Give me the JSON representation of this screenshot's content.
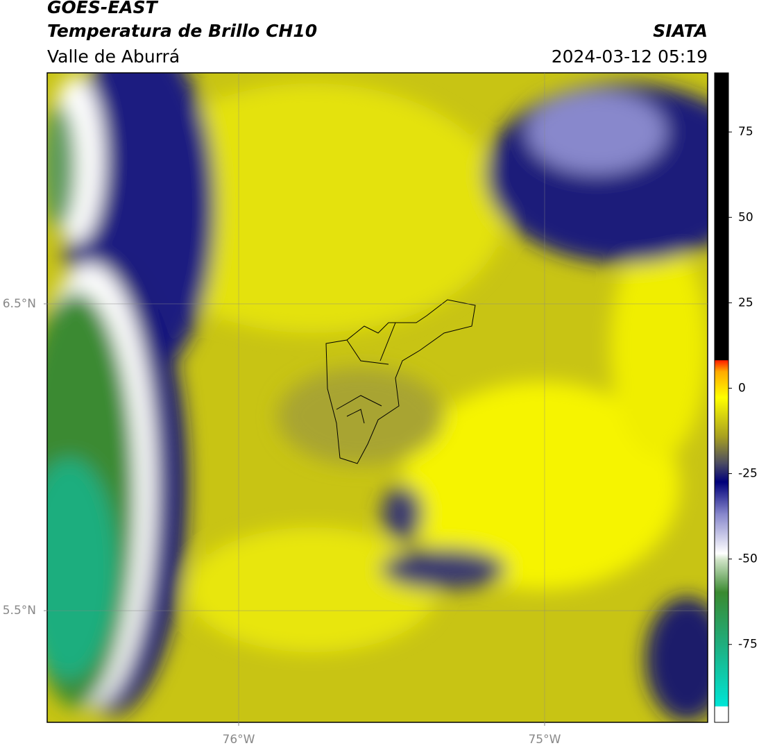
{
  "header": {
    "title": "GOES-EAST",
    "subtitle": "Temperatura de Brillo CH10",
    "region": "Valle de Aburrá",
    "source": "SIATA",
    "datetime": "2024-03-12 05:19"
  },
  "map": {
    "xlim": [
      -76.626,
      -74.467
    ],
    "ylim": [
      5.136,
      7.253
    ],
    "xticks": [
      {
        "value": -76,
        "label": "76°W"
      },
      {
        "value": -75,
        "label": "75°W"
      }
    ],
    "yticks": [
      {
        "value": 6.5,
        "label": "6.5°N"
      },
      {
        "value": 5.5,
        "label": "5.5°N"
      }
    ]
  },
  "colorbar": {
    "lim": [
      -97.8,
      92.3
    ],
    "ticks": [
      75,
      50,
      25,
      0,
      -25,
      -50,
      -75
    ]
  }
}
